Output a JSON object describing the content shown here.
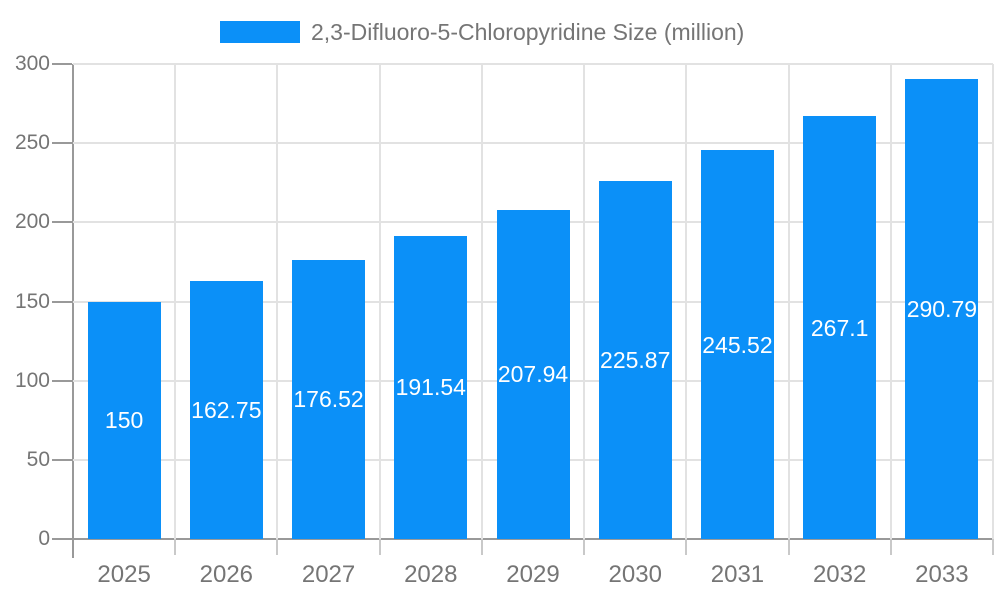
{
  "chart_data": {
    "type": "bar",
    "title": "2,3-Difluoro-5-Chloropyridine Size (million)",
    "categories": [
      "2025",
      "2026",
      "2027",
      "2028",
      "2029",
      "2030",
      "2031",
      "2032",
      "2033"
    ],
    "values": [
      150,
      162.75,
      176.52,
      191.54,
      207.94,
      225.87,
      245.52,
      267.1,
      290.79
    ],
    "value_labels": [
      "150",
      "162.75",
      "176.52",
      "191.54",
      "207.94",
      "225.87",
      "245.52",
      "267.1",
      "290.79"
    ],
    "xlabel": "",
    "ylabel": "",
    "ylim": [
      0,
      300
    ],
    "ytick_step": 50,
    "ytick_labels": [
      "0",
      "50",
      "100",
      "150",
      "200",
      "250",
      "300"
    ],
    "grid": true,
    "legend_position": "top-center",
    "bar_color": "#0b90f8",
    "value_label_color": "#ffffff",
    "axis_text_color": "#757575",
    "grid_color": "#e2e2e2",
    "axis_line_color": "#999999"
  }
}
